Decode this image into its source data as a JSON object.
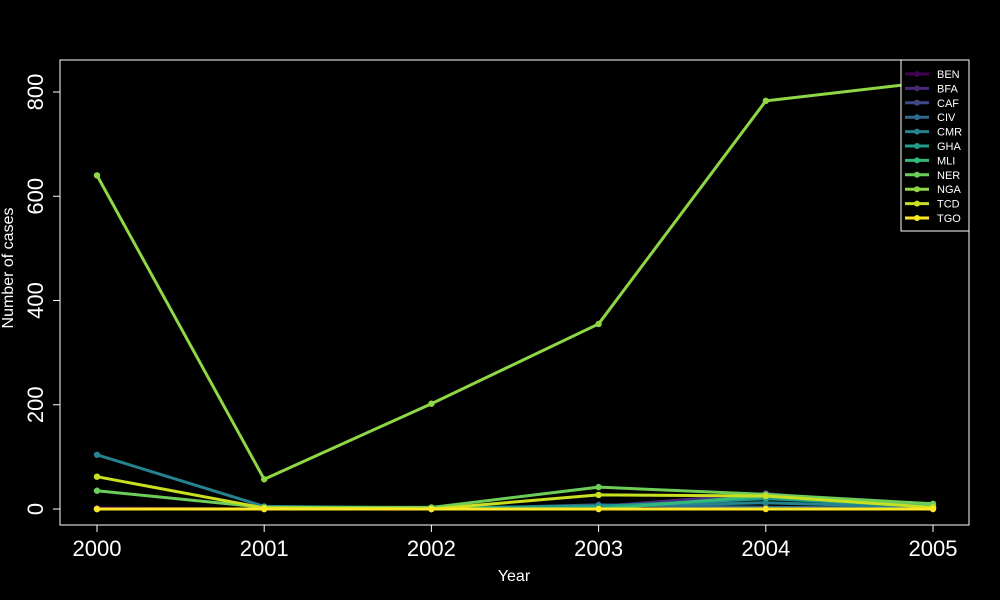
{
  "chart_data": {
    "type": "line",
    "xlabel": "Year",
    "ylabel": "Number of cases",
    "x": [
      2000,
      2001,
      2002,
      2003,
      2004,
      2005
    ],
    "xlim": [
      2000,
      2005
    ],
    "ylim": [
      0,
      820
    ],
    "y_ticks": [
      0,
      200,
      400,
      600,
      800
    ],
    "grid": false,
    "legend_position": "top-right",
    "background": "#000000",
    "series": [
      {
        "name": "BEN",
        "color": "#440154",
        "values": [
          2,
          0,
          0,
          3,
          2,
          0
        ]
      },
      {
        "name": "BFA",
        "color": "#482878",
        "values": [
          0,
          0,
          0,
          5,
          30,
          0
        ]
      },
      {
        "name": "CAF",
        "color": "#3E4A89",
        "values": [
          0,
          0,
          0,
          0,
          25,
          0
        ]
      },
      {
        "name": "CIV",
        "color": "#31688E",
        "values": [
          0,
          0,
          0,
          8,
          3,
          2
        ]
      },
      {
        "name": "CMR",
        "color": "#26828E",
        "values": [
          104,
          5,
          2,
          5,
          12,
          3
        ]
      },
      {
        "name": "GHA",
        "color": "#1F9E89",
        "values": [
          0,
          0,
          2,
          5,
          20,
          5
        ]
      },
      {
        "name": "MLI",
        "color": "#35B779",
        "values": [
          0,
          0,
          0,
          0,
          25,
          8
        ]
      },
      {
        "name": "NER",
        "color": "#6DCD59",
        "values": [
          35,
          3,
          3,
          42,
          28,
          10
        ]
      },
      {
        "name": "NGA",
        "color": "#8FD744",
        "values": [
          640,
          57,
          202,
          355,
          783,
          820
        ]
      },
      {
        "name": "TCD",
        "color": "#C8E020",
        "values": [
          62,
          2,
          0,
          27,
          25,
          3
        ]
      },
      {
        "name": "TGO",
        "color": "#FDE725",
        "values": [
          0,
          0,
          0,
          0,
          0,
          0
        ]
      }
    ]
  }
}
